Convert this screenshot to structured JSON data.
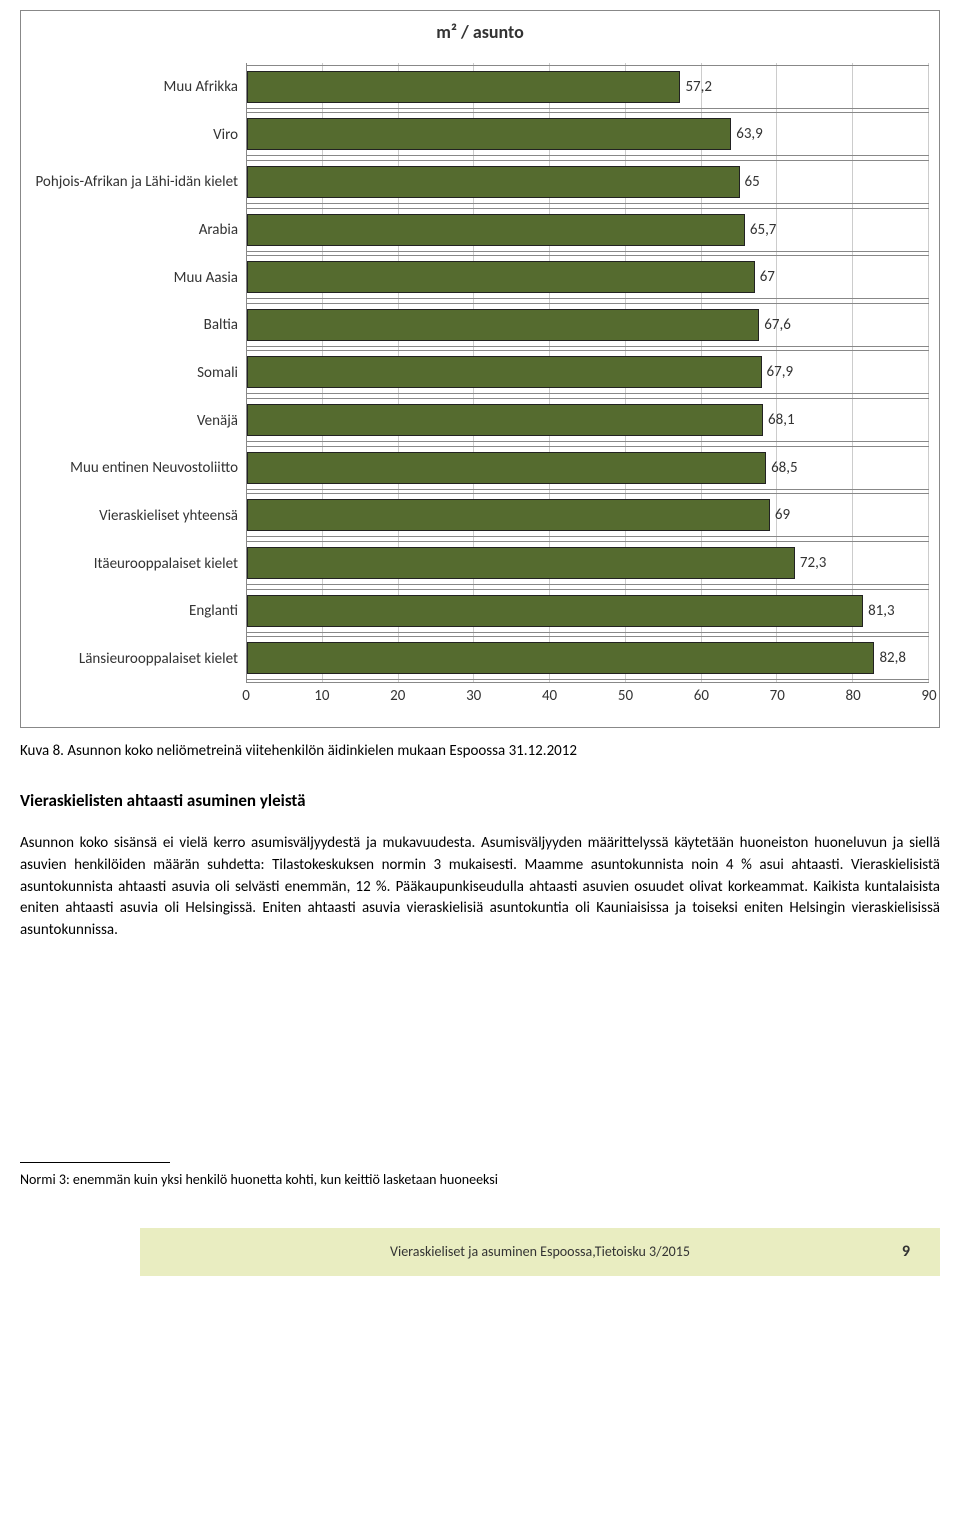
{
  "chart": {
    "type": "bar-horizontal",
    "title": "m² / asunto",
    "title_fontsize": 18,
    "categories": [
      "Muu Afrikka",
      "Viro",
      "Pohjois-Afrikan ja Lähi-idän kielet",
      "Arabia",
      "Muu Aasia",
      "Baltia",
      "Somali",
      "Venäjä",
      "Muu entinen Neuvostoliitto",
      "Vieraskieliset yhteensä",
      "Itäeurooppalaiset kielet",
      "Englanti",
      "Länsieurooppalaiset kielet"
    ],
    "values": [
      57.2,
      63.9,
      65,
      65.7,
      67,
      67.6,
      67.9,
      68.1,
      68.5,
      69,
      72.3,
      81.3,
      82.8
    ],
    "value_labels": [
      "57,2",
      "63,9",
      "65",
      "65,7",
      "67",
      "67,6",
      "67,9",
      "68,1",
      "68,5",
      "69",
      "72,3",
      "81,3",
      "82,8"
    ],
    "bar_color": "#556b2f",
    "bar_border_color": "#222222",
    "xlim": [
      0,
      90
    ],
    "xtick_step": 10,
    "xticks": [
      "0",
      "10",
      "20",
      "30",
      "40",
      "50",
      "60",
      "70",
      "80",
      "90"
    ],
    "background_color": "#ffffff",
    "grid_color": "#cccccc",
    "axis_color": "#888888",
    "label_fontsize": 15,
    "value_fontsize": 15
  },
  "caption": "Kuva 8. Asunnon koko neliömetreinä viitehenkilön äidinkielen mukaan Espoossa 31.12.2012",
  "section_heading": "Vieraskielisten ahtaasti asuminen yleistä",
  "body_text": "Asunnon koko sisänsä ei vielä kerro asumisväljyydestä ja mukavuudesta. Asumisväljyyden määrittelyssä käytetään huoneiston huoneluvun ja siellä asuvien henkilöiden määrän suhdetta: Tilastokeskuksen normin 3 mukaisesti. Maamme asuntokunnista noin 4 % asui ahtaasti. Vieraskielisistä asuntokunnista ahtaasti asuvia oli selvästi enemmän, 12 %. Pääkaupunkiseudulla ahtaasti asuvien osuudet olivat korkeammat. Kaikista kuntalaisista eniten ahtaasti asuvia oli Helsingissä. Eniten ahtaasti asuvia vieraskielisiä asuntokuntia oli Kauniaisissa ja toiseksi eniten Helsingin vieraskielisissä asuntokunnissa.",
  "footnote": "Normi 3: enemmän kuin yksi henkilö huonetta kohti, kun keittiö lasketaan huoneeksi",
  "footer": {
    "text": "Vieraskieliset ja asuminen Espoossa,Tietoisku 3/2015",
    "page": "9",
    "background_color": "#e9edc1"
  }
}
